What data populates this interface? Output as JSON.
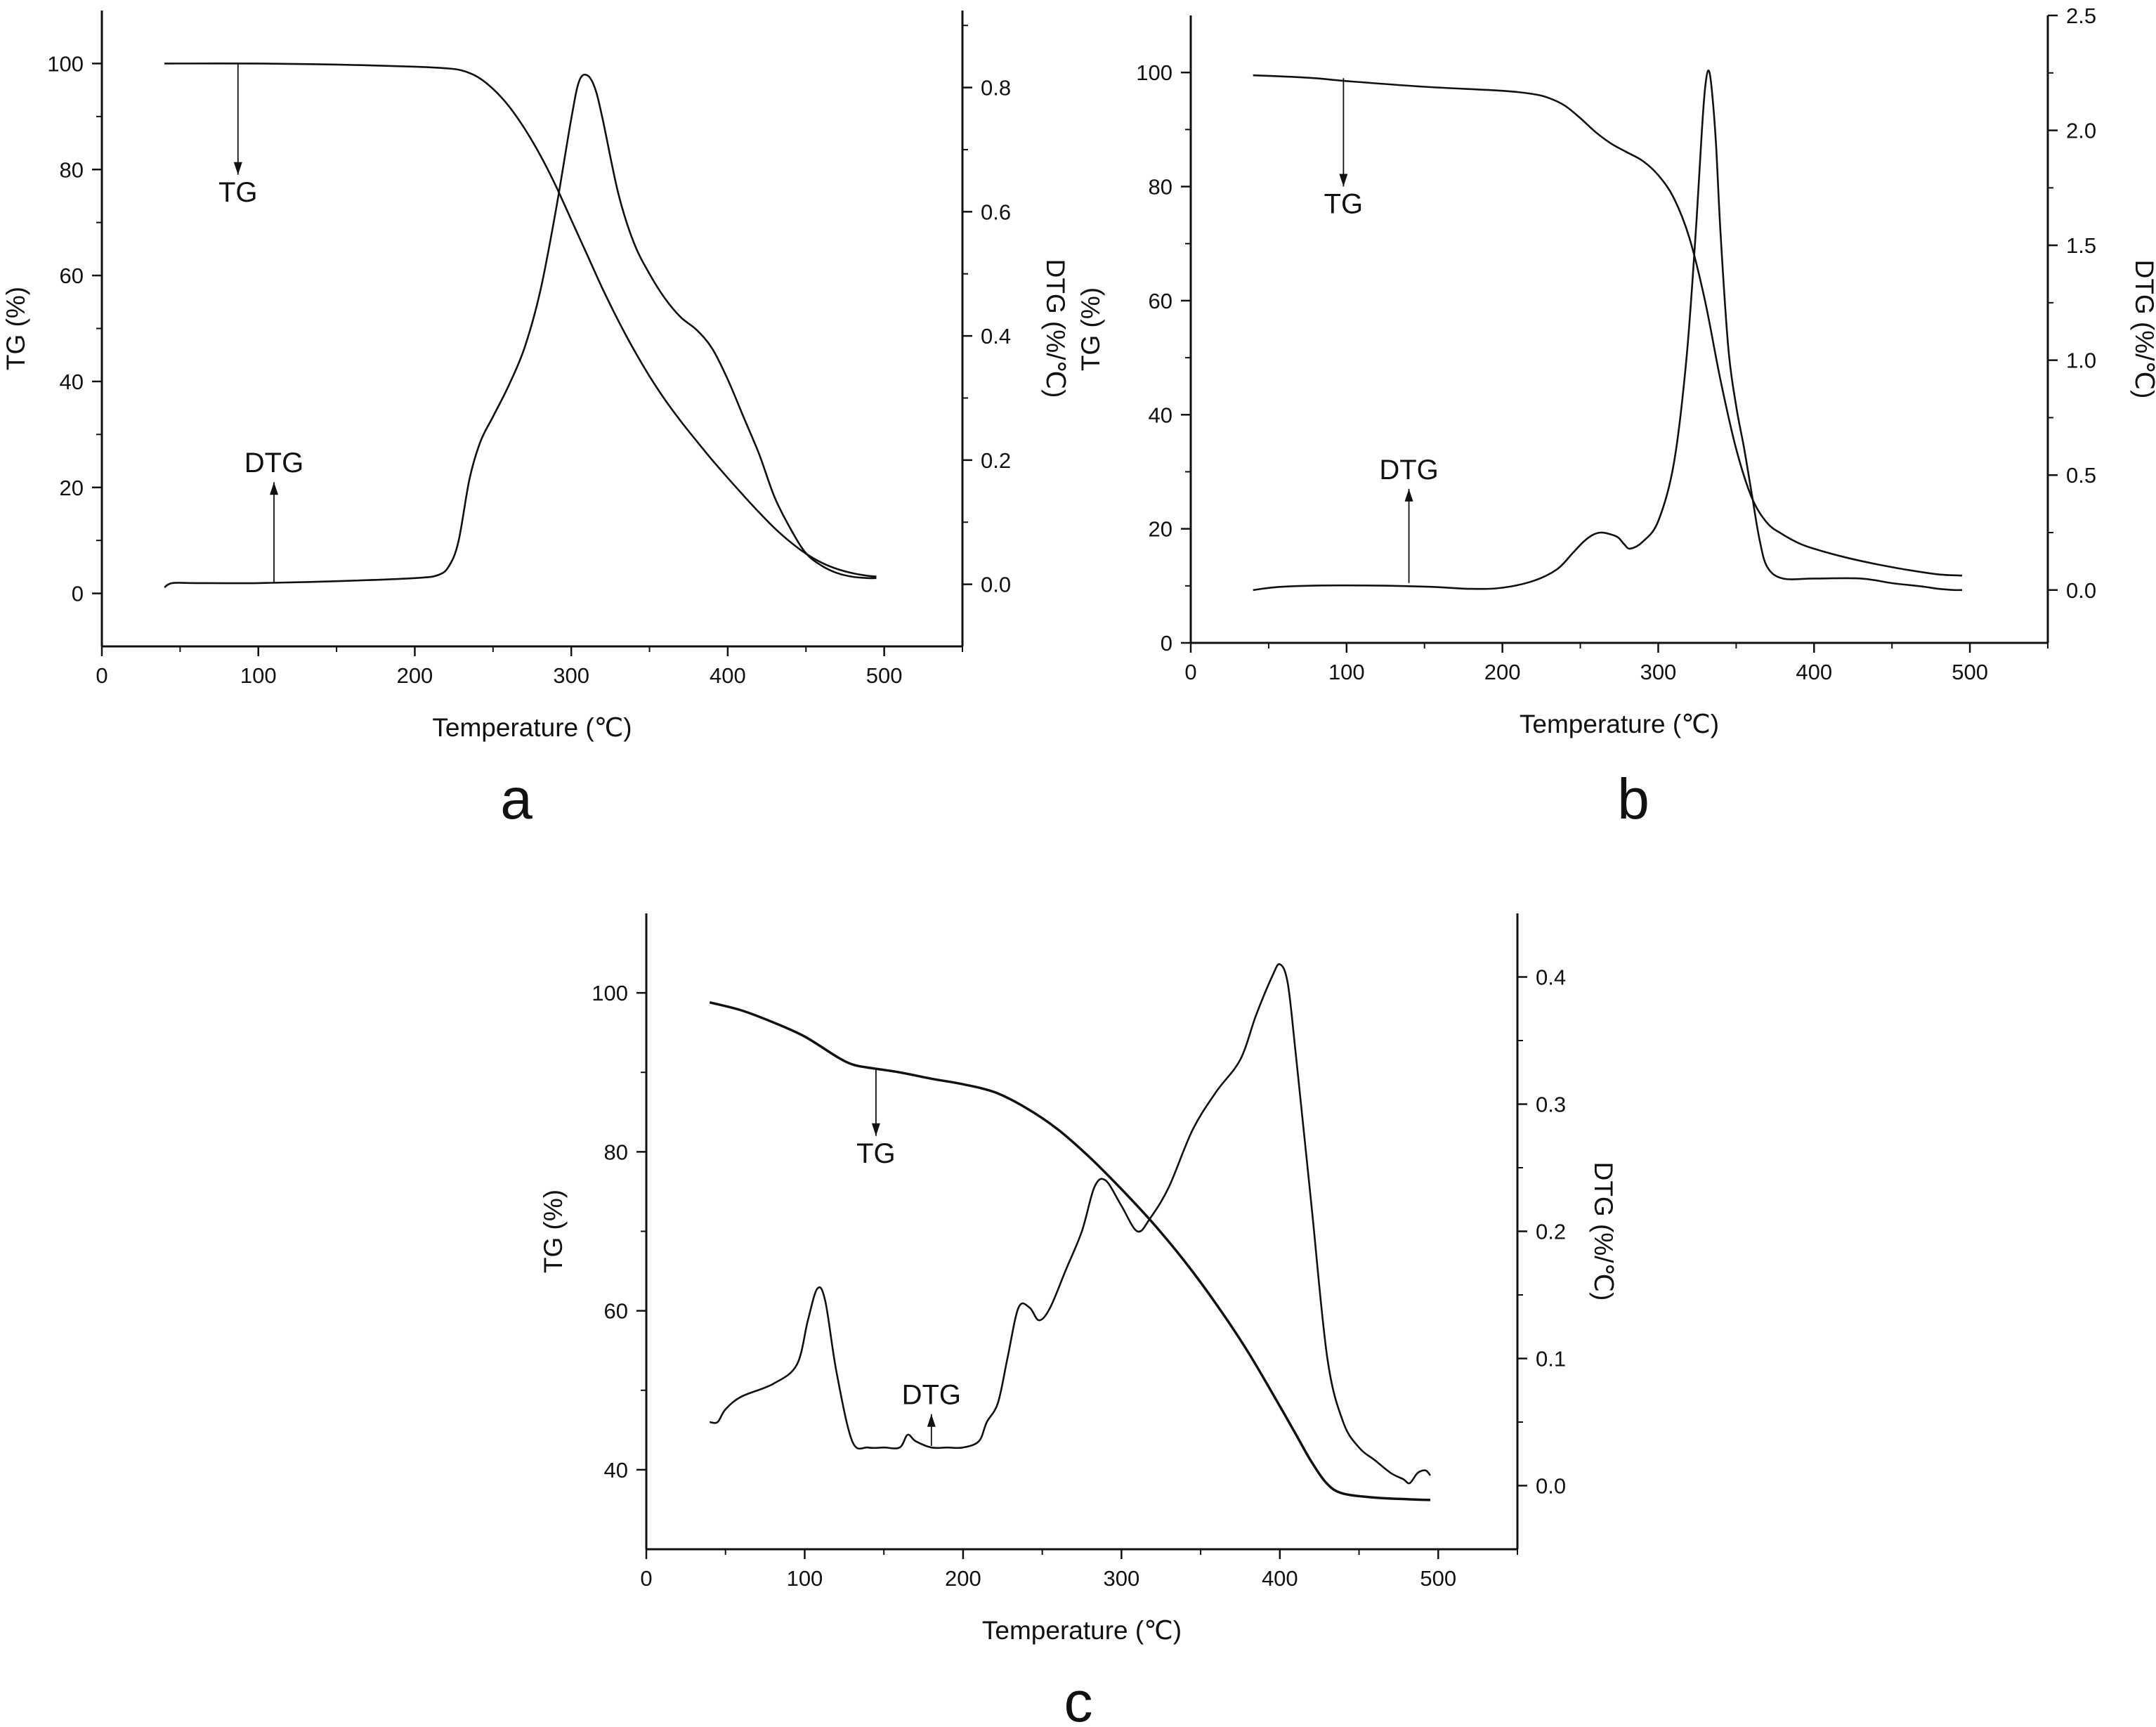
{
  "figure": {
    "panels": [
      "a",
      "b",
      "c"
    ]
  },
  "chart_data": [
    {
      "panel": "a",
      "type": "line",
      "xlabel": "Temperature (℃)",
      "ylabel": "TG (%)",
      "y2label": "DTG (%/℃)",
      "xlim": [
        0,
        550
      ],
      "xticks": [
        0,
        100,
        200,
        300,
        400,
        500
      ],
      "ylim": [
        -10,
        110
      ],
      "yticks": [
        0,
        20,
        40,
        60,
        80,
        100
      ],
      "y2lim": [
        -0.1,
        0.924
      ],
      "y2ticks": [
        0.0,
        0.2,
        0.4,
        0.6,
        0.8
      ],
      "y2tick_labels": [
        "0.0",
        "0.2",
        "0.4",
        "0.6",
        "0.8"
      ],
      "annotations": [
        {
          "text": "TG",
          "x": 87,
          "y": 75,
          "arrow_from": [
            87,
            100
          ],
          "arrow_to": [
            87,
            79
          ],
          "series": "TG"
        },
        {
          "text": "DTG",
          "x": 110,
          "y": 26,
          "arrow_from": [
            110,
            2
          ],
          "arrow_to": [
            110,
            21
          ],
          "series": "DTG"
        }
      ],
      "series": [
        {
          "name": "TG",
          "axis": "left",
          "x": [
            40,
            100,
            150,
            200,
            220,
            230,
            240,
            250,
            260,
            270,
            280,
            290,
            300,
            310,
            320,
            330,
            340,
            350,
            360,
            370,
            380,
            390,
            400,
            410,
            420,
            430,
            440,
            450,
            460,
            470,
            480,
            490,
            495
          ],
          "y": [
            100,
            100,
            99.8,
            99.4,
            99.1,
            98.7,
            97.5,
            95.2,
            92,
            87.8,
            82.8,
            77,
            70.5,
            64,
            57.5,
            51.5,
            46,
            41,
            36.5,
            32.5,
            28.8,
            25.2,
            21.8,
            18.5,
            15.3,
            12.3,
            9.7,
            7.5,
            5.8,
            4.6,
            3.8,
            3.3,
            3.2
          ]
        },
        {
          "name": "DTG",
          "axis": "right",
          "x": [
            40,
            45,
            60,
            100,
            150,
            200,
            215,
            222,
            228,
            235,
            242,
            250,
            260,
            270,
            280,
            290,
            300,
            305,
            310,
            315,
            320,
            330,
            340,
            350,
            360,
            370,
            380,
            390,
            400,
            410,
            420,
            430,
            440,
            450,
            460,
            470,
            480,
            490,
            495
          ],
          "y": [
            -0.005,
            0.002,
            0.002,
            0.002,
            0.005,
            0.01,
            0.015,
            0.03,
            0.07,
            0.17,
            0.23,
            0.27,
            0.32,
            0.38,
            0.47,
            0.6,
            0.75,
            0.81,
            0.82,
            0.8,
            0.75,
            0.63,
            0.55,
            0.5,
            0.46,
            0.43,
            0.41,
            0.38,
            0.33,
            0.27,
            0.21,
            0.14,
            0.09,
            0.05,
            0.03,
            0.018,
            0.012,
            0.01,
            0.01
          ]
        }
      ]
    },
    {
      "panel": "b",
      "type": "line",
      "xlabel": "Temperature (℃)",
      "ylabel": "TG (%)",
      "y2label": "DTG (%/℃)",
      "xlim": [
        0,
        550
      ],
      "xticks": [
        0,
        100,
        200,
        300,
        400,
        500
      ],
      "ylim": [
        0,
        110
      ],
      "yticks": [
        0,
        20,
        40,
        60,
        80,
        100
      ],
      "y2lim": [
        -0.23,
        2.5
      ],
      "y2ticks": [
        0.0,
        0.5,
        1.0,
        1.5,
        2.0,
        2.5
      ],
      "y2tick_labels": [
        "0.0",
        "0.5",
        "1.0",
        "1.5",
        "2.0",
        "2.5"
      ],
      "annotations": [
        {
          "text": "TG",
          "x": 98,
          "y": 76,
          "arrow_from": [
            98,
            99
          ],
          "arrow_to": [
            98,
            80
          ],
          "series": "TG"
        },
        {
          "text": "DTG",
          "x": 140,
          "y": 31,
          "arrow_from": [
            140,
            10.5
          ],
          "arrow_to": [
            140,
            27
          ],
          "series": "DTG"
        }
      ],
      "series": [
        {
          "name": "TG",
          "axis": "left",
          "x": [
            40,
            60,
            80,
            100,
            150,
            200,
            220,
            230,
            240,
            250,
            260,
            270,
            280,
            290,
            300,
            310,
            320,
            330,
            340,
            350,
            360,
            370,
            380,
            390,
            400,
            420,
            440,
            460,
            480,
            495
          ],
          "y": [
            99.5,
            99.3,
            99,
            98.5,
            97.5,
            96.8,
            96.2,
            95.5,
            94.2,
            92,
            89.5,
            87.5,
            86,
            84.5,
            82,
            78,
            71,
            60,
            46,
            34,
            25.5,
            21,
            19,
            17.5,
            16.5,
            15,
            13.8,
            12.8,
            12,
            11.8
          ]
        },
        {
          "name": "DTG",
          "axis": "right",
          "x": [
            40,
            60,
            100,
            150,
            180,
            200,
            220,
            235,
            245,
            252,
            258,
            263,
            268,
            274,
            278,
            282,
            290,
            300,
            310,
            318,
            324,
            328,
            330,
            332,
            334,
            337,
            340,
            345,
            350,
            355,
            360,
            365,
            370,
            380,
            400,
            430,
            450,
            470,
            480,
            490,
            495
          ],
          "y": [
            0.0,
            0.015,
            0.02,
            0.015,
            0.005,
            0.01,
            0.04,
            0.09,
            0.16,
            0.21,
            0.24,
            0.25,
            0.245,
            0.23,
            0.2,
            0.18,
            0.21,
            0.3,
            0.55,
            1.0,
            1.55,
            2.0,
            2.18,
            2.26,
            2.2,
            1.95,
            1.55,
            1.05,
            0.8,
            0.62,
            0.42,
            0.22,
            0.1,
            0.05,
            0.05,
            0.05,
            0.03,
            0.015,
            0.005,
            0.0,
            0.0
          ]
        }
      ]
    },
    {
      "panel": "c",
      "type": "line",
      "xlabel": "Temperature (℃)",
      "ylabel": "TG (%)",
      "y2label": "DTG (%/℃)",
      "xlim": [
        0,
        550
      ],
      "xticks": [
        0,
        100,
        200,
        300,
        400,
        500
      ],
      "ylim": [
        30,
        110
      ],
      "yticks": [
        40,
        60,
        80,
        100
      ],
      "y2lim": [
        -0.05,
        0.45
      ],
      "y2ticks": [
        0.0,
        0.1,
        0.2,
        0.3,
        0.4
      ],
      "y2tick_labels": [
        "0.0",
        "0.1",
        "0.2",
        "0.3",
        "0.4"
      ],
      "annotations": [
        {
          "text": "TG",
          "x": 145,
          "y": 79,
          "arrow_from": [
            145,
            90.5
          ],
          "arrow_to": [
            145,
            82
          ],
          "series": "TG"
        },
        {
          "text": "DTG",
          "x": 180,
          "y": 49,
          "arrow_from": [
            180,
            43
          ],
          "arrow_to": [
            180,
            47
          ],
          "series": "DTG"
        }
      ],
      "series": [
        {
          "name": "TG",
          "axis": "left",
          "x": [
            40,
            60,
            80,
            100,
            120,
            130,
            140,
            160,
            180,
            200,
            220,
            240,
            260,
            280,
            300,
            320,
            340,
            360,
            380,
            400,
            410,
            420,
            430,
            440,
            460,
            480,
            495
          ],
          "y": [
            98.8,
            97.8,
            96.3,
            94.5,
            92,
            91,
            90.6,
            90,
            89.2,
            88.5,
            87.5,
            85.5,
            82.8,
            79.3,
            75.3,
            71,
            66.2,
            60.8,
            54.8,
            48,
            44.5,
            41,
            38.2,
            37,
            36.5,
            36.3,
            36.2
          ]
        },
        {
          "name": "DTG",
          "axis": "right",
          "x": [
            40,
            45,
            50,
            60,
            80,
            95,
            102,
            108,
            113,
            120,
            130,
            140,
            150,
            160,
            165,
            170,
            180,
            190,
            200,
            210,
            215,
            222,
            228,
            235,
            242,
            248,
            255,
            265,
            275,
            283,
            290,
            300,
            310,
            318,
            330,
            345,
            360,
            375,
            385,
            395,
            400,
            405,
            410,
            420,
            430,
            440,
            450,
            460,
            470,
            478,
            482,
            487,
            492,
            495
          ],
          "y": [
            0.05,
            0.05,
            0.06,
            0.07,
            0.08,
            0.095,
            0.13,
            0.155,
            0.145,
            0.09,
            0.035,
            0.03,
            0.03,
            0.03,
            0.04,
            0.035,
            0.03,
            0.03,
            0.03,
            0.035,
            0.05,
            0.065,
            0.1,
            0.14,
            0.14,
            0.13,
            0.14,
            0.17,
            0.2,
            0.235,
            0.24,
            0.22,
            0.2,
            0.21,
            0.235,
            0.28,
            0.31,
            0.335,
            0.37,
            0.4,
            0.41,
            0.395,
            0.34,
            0.22,
            0.1,
            0.05,
            0.03,
            0.02,
            0.01,
            0.005,
            0.002,
            0.01,
            0.012,
            0.008
          ]
        }
      ]
    }
  ]
}
